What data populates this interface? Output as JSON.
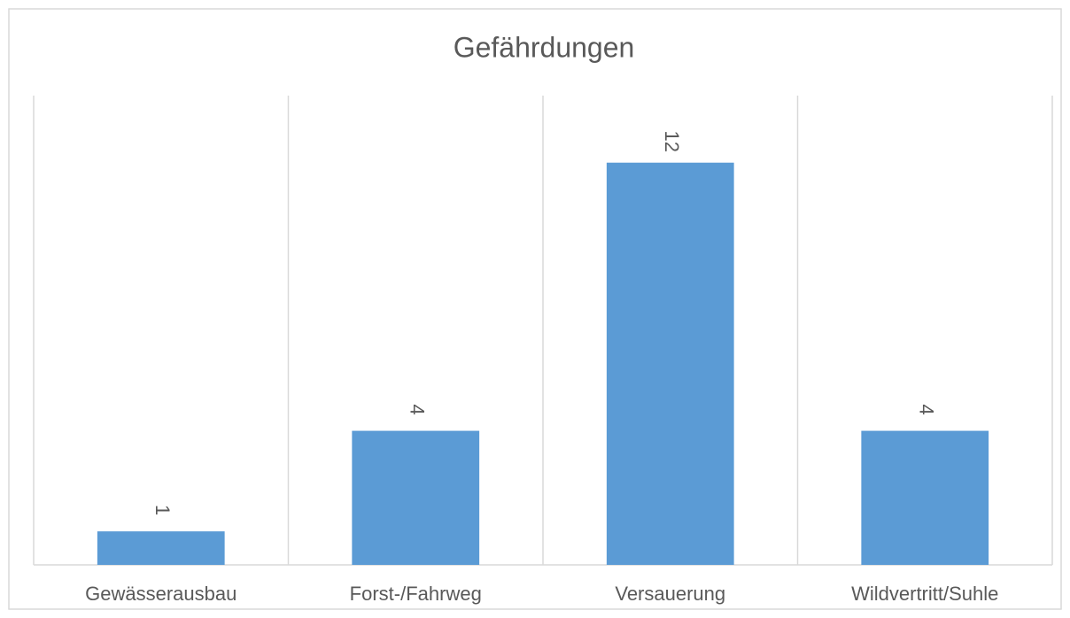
{
  "chart_data": {
    "type": "bar",
    "title": "Gefährdungen",
    "categories": [
      "Gewässerausbau",
      "Forst-/Fahrweg",
      "Versauerung",
      "Wildvertritt/Suhle"
    ],
    "values": [
      1,
      4,
      12,
      4
    ],
    "color": "#5b9bd5",
    "ylim": [
      0,
      14
    ],
    "data_labels": true,
    "grid": "vertical"
  }
}
